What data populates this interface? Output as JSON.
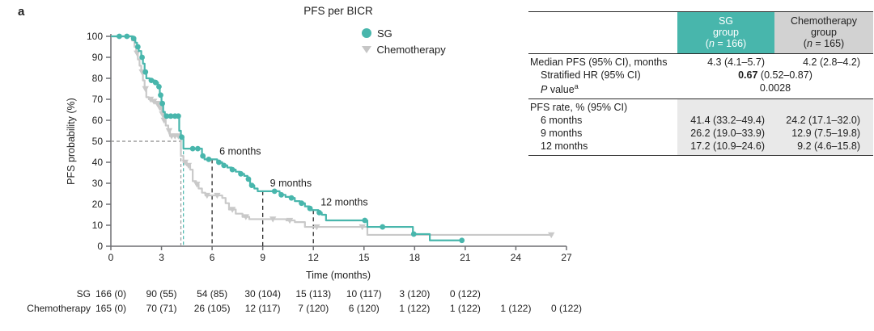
{
  "panel_label": "a",
  "title": "PFS per BICR",
  "colors": {
    "sg": "#48b6ac",
    "chemo_line": "#c9c9c9",
    "chemo_header_bg": "#d2d2d2",
    "shade_bg": "#e9e9e9",
    "axis": "#6e6f72",
    "dashed_ref": "#8a8a8a",
    "dashed_month": "#2b2b2b"
  },
  "legend": {
    "items": [
      {
        "label": "SG",
        "marker": "circle",
        "color": "#48b6ac"
      },
      {
        "label": "Chemotherapy",
        "marker": "triangle-down",
        "color": "#c6c6c6"
      }
    ]
  },
  "chart_data": {
    "type": "line",
    "subtype": "kaplan-meier-step",
    "title": "PFS per BICR",
    "xlabel": "Time (months)",
    "ylabel": "PFS probability (%)",
    "xlim": [
      0,
      27
    ],
    "ylim": [
      0,
      100
    ],
    "xticks": [
      0,
      3,
      6,
      9,
      12,
      15,
      18,
      21,
      24,
      27
    ],
    "yticks": [
      0,
      10,
      20,
      30,
      40,
      50,
      60,
      70,
      80,
      90,
      100
    ],
    "grid": false,
    "legend_position": "top-right",
    "series": [
      {
        "name": "Chemotherapy",
        "color": "#c9c9c9",
        "marker": "triangle-down",
        "end": 26.2,
        "steps": [
          [
            0,
            100
          ],
          [
            1.25,
            98
          ],
          [
            1.4,
            95
          ],
          [
            1.5,
            92
          ],
          [
            1.6,
            89
          ],
          [
            1.7,
            86
          ],
          [
            1.8,
            83
          ],
          [
            1.9,
            79
          ],
          [
            2.0,
            75
          ],
          [
            2.1,
            71
          ],
          [
            2.25,
            70
          ],
          [
            2.45,
            69
          ],
          [
            2.65,
            68
          ],
          [
            2.85,
            66
          ],
          [
            3.0,
            63
          ],
          [
            3.1,
            60
          ],
          [
            3.25,
            57.5
          ],
          [
            3.4,
            55
          ],
          [
            3.5,
            52.5
          ],
          [
            4.15,
            43
          ],
          [
            4.3,
            40
          ],
          [
            4.5,
            38.5
          ],
          [
            4.7,
            36.5
          ],
          [
            4.85,
            31
          ],
          [
            5.05,
            29.5
          ],
          [
            5.2,
            27.5
          ],
          [
            5.4,
            25.5
          ],
          [
            5.6,
            24.2
          ],
          [
            6.6,
            23
          ],
          [
            6.8,
            20.5
          ],
          [
            7.0,
            17.5
          ],
          [
            7.4,
            15.5
          ],
          [
            7.8,
            14
          ],
          [
            8.2,
            12.9
          ],
          [
            10.4,
            12.3
          ],
          [
            10.9,
            11.5
          ],
          [
            11.5,
            9.2
          ],
          [
            15.2,
            5.4
          ]
        ],
        "censors": [
          [
            1.55,
            92
          ],
          [
            1.85,
            83
          ],
          [
            2.05,
            75
          ],
          [
            2.35,
            70
          ],
          [
            2.55,
            69
          ],
          [
            2.75,
            68
          ],
          [
            2.9,
            66
          ],
          [
            3.05,
            63
          ],
          [
            3.15,
            60
          ],
          [
            3.45,
            55
          ],
          [
            3.6,
            52.5
          ],
          [
            3.8,
            52.5
          ],
          [
            4.0,
            52.5
          ],
          [
            4.4,
            40
          ],
          [
            4.6,
            38.5
          ],
          [
            5.1,
            29.5
          ],
          [
            5.7,
            24.2
          ],
          [
            6.3,
            24.2
          ],
          [
            7.2,
            17.5
          ],
          [
            8.0,
            14
          ],
          [
            9.6,
            12.9
          ],
          [
            10.6,
            12.3
          ],
          [
            12.2,
            9.2
          ],
          [
            14.9,
            9.2
          ],
          [
            26.1,
            5.4
          ]
        ]
      },
      {
        "name": "SG",
        "color": "#48b6ac",
        "marker": "circle",
        "end": 20.85,
        "steps": [
          [
            0,
            100
          ],
          [
            1.3,
            99
          ],
          [
            1.45,
            97
          ],
          [
            1.55,
            95
          ],
          [
            1.65,
            93
          ],
          [
            1.8,
            90
          ],
          [
            1.9,
            87
          ],
          [
            2.0,
            83
          ],
          [
            2.1,
            80
          ],
          [
            2.3,
            79
          ],
          [
            2.6,
            78
          ],
          [
            2.8,
            76
          ],
          [
            2.9,
            72
          ],
          [
            3.0,
            68
          ],
          [
            3.1,
            64
          ],
          [
            3.2,
            62
          ],
          [
            4.05,
            55
          ],
          [
            4.15,
            52
          ],
          [
            4.3,
            46.5
          ],
          [
            5.4,
            43
          ],
          [
            5.55,
            41.4
          ],
          [
            6.3,
            40
          ],
          [
            6.6,
            38.5
          ],
          [
            6.9,
            37.5
          ],
          [
            7.15,
            36.5
          ],
          [
            7.4,
            35.5
          ],
          [
            7.65,
            34.5
          ],
          [
            7.9,
            33.5
          ],
          [
            8.1,
            32
          ],
          [
            8.25,
            29
          ],
          [
            8.5,
            27.5
          ],
          [
            8.7,
            26.2
          ],
          [
            10.0,
            24.5
          ],
          [
            10.35,
            23.5
          ],
          [
            10.6,
            23
          ],
          [
            10.9,
            21.5
          ],
          [
            11.2,
            20.5
          ],
          [
            11.5,
            19
          ],
          [
            11.75,
            18
          ],
          [
            11.9,
            17.2
          ],
          [
            12.3,
            16
          ],
          [
            12.5,
            15
          ],
          [
            12.75,
            12.3
          ],
          [
            15.2,
            9.2
          ],
          [
            17.9,
            5.8
          ],
          [
            18.9,
            2.8
          ]
        ],
        "censors": [
          [
            0.5,
            100
          ],
          [
            0.95,
            100
          ],
          [
            1.35,
            99
          ],
          [
            1.6,
            95
          ],
          [
            1.85,
            90
          ],
          [
            2.05,
            83
          ],
          [
            2.4,
            79
          ],
          [
            2.65,
            78
          ],
          [
            2.85,
            76
          ],
          [
            2.95,
            72
          ],
          [
            3.05,
            68
          ],
          [
            3.3,
            62
          ],
          [
            3.55,
            62
          ],
          [
            3.8,
            62
          ],
          [
            4.0,
            62
          ],
          [
            4.2,
            52
          ],
          [
            4.85,
            46.5
          ],
          [
            5.15,
            46.5
          ],
          [
            5.45,
            43
          ],
          [
            5.8,
            41.4
          ],
          [
            6.4,
            40
          ],
          [
            6.7,
            38.5
          ],
          [
            7.2,
            36.5
          ],
          [
            7.7,
            34.5
          ],
          [
            8.15,
            32
          ],
          [
            8.35,
            29
          ],
          [
            9.7,
            26.2
          ],
          [
            10.1,
            24.5
          ],
          [
            10.7,
            23
          ],
          [
            11.3,
            20.5
          ],
          [
            11.8,
            18
          ],
          [
            12.35,
            16
          ],
          [
            15.05,
            12.3
          ],
          [
            16.1,
            9.2
          ],
          [
            17.95,
            5.8
          ],
          [
            20.8,
            2.8
          ]
        ]
      }
    ],
    "median_reference": {
      "probability": 50,
      "h_from": 0,
      "h_to": 4.15,
      "verticals": [
        {
          "t": 4.15,
          "from_v": 50,
          "color": "#9b9b9b",
          "meaning": "chemotherapy median 4.2"
        },
        {
          "t": 4.3,
          "from_v": 48,
          "color": "#48b6ac",
          "meaning": "SG median 4.3"
        }
      ]
    },
    "annotations": [
      {
        "text": "6 months",
        "t": 6,
        "v": 41.4
      },
      {
        "text": "9 months",
        "t": 9,
        "v": 26.2
      },
      {
        "text": "12 months",
        "t": 12,
        "v": 17.2
      }
    ],
    "at_risk": {
      "rows": [
        {
          "label": "SG",
          "values": [
            "166 (0)",
            "90 (55)",
            "54 (85)",
            "30 (104)",
            "15 (113)",
            "10 (117)",
            "3 (120)",
            "0 (122)"
          ]
        },
        {
          "label": "Chemotherapy",
          "values": [
            "165 (0)",
            "70 (71)",
            "26 (105)",
            "12 (117)",
            "7 (120)",
            "6 (120)",
            "1 (122)",
            "1 (122)",
            "1 (122)",
            "0 (122)"
          ]
        }
      ]
    }
  },
  "table": {
    "header": {
      "sg": {
        "line1": "SG",
        "line2": "group",
        "n_open": "(",
        "n_var": "n",
        "n_rest": " = 166)"
      },
      "chemo": {
        "line1": "Chemotherapy",
        "line2": "group",
        "n_open": "(",
        "n_var": "n",
        "n_rest": " = 165)"
      }
    },
    "rows": {
      "median": {
        "label": "Median PFS (95% CI), months",
        "sg": "4.3 (4.1–5.7)",
        "chemo": "4.2 (2.8–4.2)"
      },
      "hr": {
        "label": "Stratified HR (95% CI)",
        "bold": "0.67",
        "rest": " (0.52–0.87)"
      },
      "pvalue": {
        "p_italic": "P",
        "p_rest": " value",
        "p_sup": "a",
        "value": "0.0028"
      },
      "pfs_rate_label": "PFS rate, % (95% CI)",
      "rate_rows": [
        {
          "label": "6 months",
          "sg": "41.4 (33.2–49.4)",
          "chemo": "24.2 (17.1–32.0)"
        },
        {
          "label": "9 months",
          "sg": "26.2 (19.0–33.9)",
          "chemo": "12.9 (7.5–19.8)"
        },
        {
          "label": "12 months",
          "sg": "17.2 (10.9–24.6)",
          "chemo": "9.2 (4.6–15.8)"
        }
      ]
    }
  }
}
